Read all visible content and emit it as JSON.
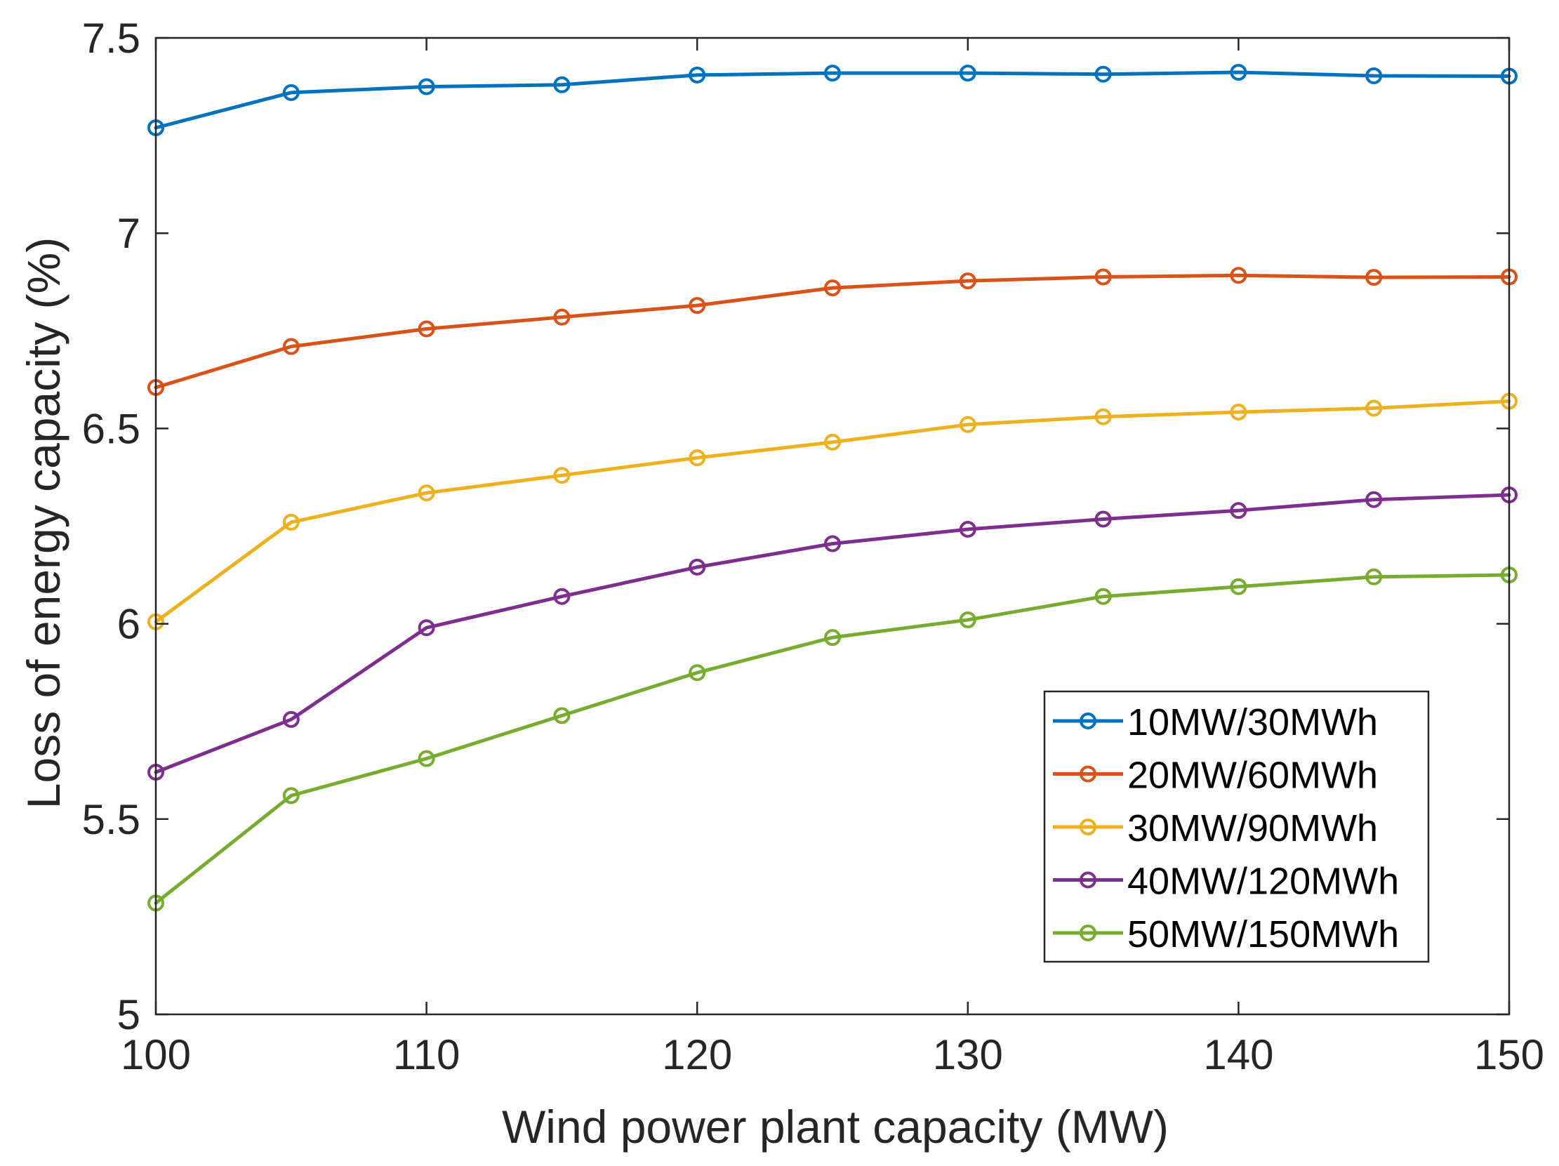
{
  "chart_data": {
    "type": "line",
    "title": "",
    "xlabel": "Wind power plant capacity (MW)",
    "ylabel": "Loss of energy capacity (%)",
    "xlim": [
      100,
      150
    ],
    "ylim": [
      5,
      7.5
    ],
    "x": [
      100,
      105,
      110,
      115,
      120,
      125,
      130,
      135,
      140,
      145,
      150
    ],
    "xticks": [
      100,
      110,
      120,
      130,
      140,
      150
    ],
    "xtick_labels": [
      "100",
      "110",
      "120",
      "130",
      "140",
      "150"
    ],
    "yticks": [
      5,
      5.5,
      6,
      6.5,
      7,
      7.5
    ],
    "ytick_labels": [
      "5",
      "5.5",
      "6",
      "6.5",
      "7",
      "7.5"
    ],
    "grid": false,
    "legend_position": "lower-right",
    "marker": "circle",
    "series": [
      {
        "name": "10MW/30MWh",
        "color": "#0072BD",
        "values": [
          7.27,
          7.36,
          7.375,
          7.38,
          7.405,
          7.41,
          7.41,
          7.407,
          7.412,
          7.403,
          7.402
        ]
      },
      {
        "name": "20MW/60MWh",
        "color": "#D95319",
        "values": [
          6.605,
          6.71,
          6.755,
          6.785,
          6.815,
          6.86,
          6.878,
          6.888,
          6.892,
          6.887,
          6.888
        ]
      },
      {
        "name": "30MW/90MWh",
        "color": "#EDB120",
        "values": [
          6.005,
          6.26,
          6.335,
          6.38,
          6.425,
          6.465,
          6.51,
          6.53,
          6.542,
          6.552,
          6.57
        ]
      },
      {
        "name": "40MW/120MWh",
        "color": "#7E2F8E",
        "values": [
          5.62,
          5.755,
          5.99,
          6.07,
          6.145,
          6.205,
          6.242,
          6.268,
          6.29,
          6.318,
          6.33
        ]
      },
      {
        "name": "50MW/150MWh",
        "color": "#77AC30",
        "values": [
          5.285,
          5.56,
          5.655,
          5.765,
          5.875,
          5.965,
          6.01,
          6.07,
          6.095,
          6.12,
          6.125
        ]
      }
    ]
  }
}
